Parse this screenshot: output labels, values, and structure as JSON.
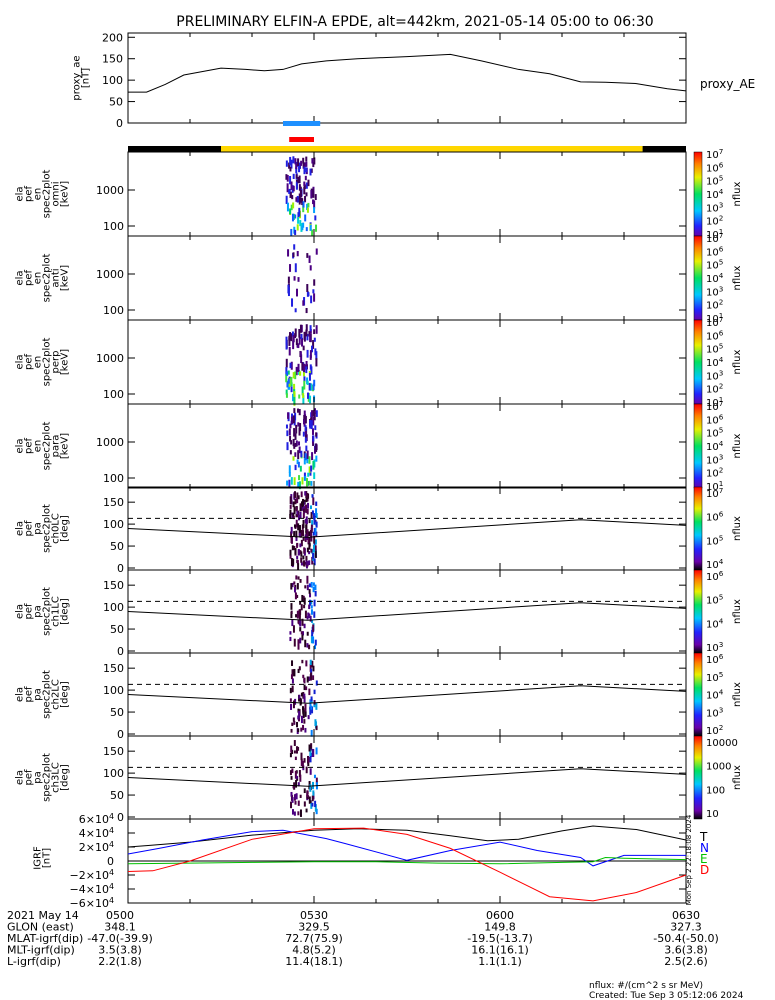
{
  "title": "PRELIMINARY ELFIN-A EPDE, alt=442km, 2021-05-14 05:00 to 06:30",
  "chart_data": [
    {
      "panel": "proxy_ae",
      "type": "line",
      "ylabel": [
        "proxy_ae",
        "[nT]"
      ],
      "yticks": [
        0,
        50,
        100,
        150,
        200
      ],
      "ylim": [
        0,
        210
      ],
      "legend": "proxy_AE",
      "series": [
        {
          "name": "proxy_AE",
          "x": [
            "05:00",
            "05:03",
            "05:06",
            "05:09",
            "05:15",
            "05:19",
            "05:22",
            "05:25",
            "05:28",
            "05:32",
            "05:37",
            "05:45",
            "05:52",
            "05:57",
            "06:03",
            "06:08",
            "06:13",
            "06:17",
            "06:22",
            "06:27",
            "06:30"
          ],
          "y": [
            72,
            72,
            90,
            112,
            128,
            125,
            122,
            125,
            138,
            145,
            150,
            155,
            160,
            145,
            125,
            115,
            96,
            95,
            92,
            80,
            75
          ]
        }
      ]
    },
    {
      "panel": "spectrogram-energy",
      "type": "heatmap",
      "panels": [
        {
          "ylabel": [
            "ela",
            "pef",
            "en",
            "spec2plot",
            "omni",
            "[keV]"
          ],
          "zticks": [
            "10",
            "10",
            "10",
            "10",
            "10",
            "10",
            "10"
          ],
          "zexp": [
            "1",
            "2",
            "3",
            "4",
            "5",
            "6",
            "7"
          ]
        },
        {
          "ylabel": [
            "ela",
            "pef",
            "en",
            "spec2plot",
            "anti",
            "[keV]"
          ],
          "zticks": [
            "10",
            "10",
            "10",
            "10",
            "10",
            "10",
            "10"
          ],
          "zexp": [
            "1",
            "2",
            "3",
            "4",
            "5",
            "6",
            "7"
          ]
        },
        {
          "ylabel": [
            "ela",
            "pef",
            "en",
            "spec2plot",
            "perp",
            "[keV]"
          ],
          "zticks": [
            "10",
            "10",
            "10",
            "10",
            "10",
            "10",
            "10"
          ],
          "zexp": [
            "1",
            "2",
            "3",
            "4",
            "5",
            "6",
            "7"
          ]
        },
        {
          "ylabel": [
            "ela",
            "pef",
            "en",
            "spec2plot",
            "para",
            "[keV]"
          ],
          "zticks": [
            "10",
            "10",
            "10",
            "10",
            "10",
            "10",
            "10"
          ],
          "zexp": [
            "1",
            "2",
            "3",
            "4",
            "5",
            "6",
            "7"
          ]
        }
      ],
      "yticks": [
        "100",
        "1000"
      ],
      "zlabel": "nflux",
      "activity_window": [
        "05:25",
        "05:30"
      ]
    },
    {
      "panel": "spectrogram-pitch-angle",
      "type": "heatmap",
      "panels": [
        {
          "ylabel": [
            "ela",
            "pef",
            "pa",
            "spec2plot",
            "ch0LC",
            "[deg]"
          ],
          "zticks": [
            "10",
            "10",
            "10",
            "10"
          ],
          "zexp": [
            "4",
            "5",
            "6",
            "7"
          ]
        },
        {
          "ylabel": [
            "ela",
            "pef",
            "pa",
            "spec2plot",
            "ch1LC",
            "[deg]"
          ],
          "zticks": [
            "10",
            "10",
            "10",
            "10"
          ],
          "zexp": [
            "3",
            "4",
            "5",
            "6"
          ]
        },
        {
          "ylabel": [
            "ela",
            "pef",
            "pa",
            "spec2plot",
            "ch2LC",
            "[deg]"
          ],
          "zticks": [
            "10",
            "10",
            "10",
            "10",
            "10"
          ],
          "zexp": [
            "2",
            "3",
            "4",
            "5",
            "6"
          ]
        },
        {
          "ylabel": [
            "ela",
            "pef",
            "pa",
            "spec2plot",
            "ch3LC",
            "[deg]"
          ],
          "zticks": [
            "10",
            "100",
            "1000",
            "10000"
          ],
          "zexp": [
            "",
            "",
            "",
            ""
          ]
        }
      ],
      "yticks": [
        0,
        50,
        100,
        150
      ],
      "zlabel": "nflux",
      "loss_cone": {
        "x": [
          "05:00",
          "05:29",
          "06:13",
          "06:30"
        ],
        "solid": [
          90,
          70,
          110,
          97
        ],
        "dashed": [
          113,
          113,
          113,
          113
        ]
      }
    },
    {
      "panel": "igrf",
      "type": "line",
      "ylabel": [
        "IGRF",
        "[nT]"
      ],
      "yticks": [
        "6×10",
        "4×10",
        "2×10",
        "0",
        "−2×10",
        "−4×10",
        "−6×10"
      ],
      "ytick_exp": "4",
      "side_text": "Mon Sep  2 22:18:08 2024",
      "legend": [
        "T",
        "N",
        "E",
        "D"
      ],
      "series": [
        {
          "name": "T",
          "color": "#000000",
          "x": [
            "05:00",
            "05:03",
            "05:10",
            "05:20",
            "05:30",
            "05:37",
            "05:45",
            "05:52",
            "05:58",
            "06:03",
            "06:10",
            "06:15",
            "06:22",
            "06:30"
          ],
          "y": [
            20000,
            22000,
            27000,
            37000,
            44000,
            46000,
            44000,
            36000,
            29000,
            31000,
            43000,
            50000,
            45000,
            30000
          ]
        },
        {
          "name": "N",
          "color": "#0000ff",
          "x": [
            "05:00",
            "05:05",
            "05:12",
            "05:20",
            "05:25",
            "05:32",
            "05:35",
            "05:45",
            "05:52",
            "06:00",
            "06:06",
            "06:13",
            "06:15",
            "06:20",
            "06:30"
          ],
          "y": [
            10000,
            18000,
            30000,
            42000,
            44000,
            32000,
            25000,
            1000,
            15000,
            27000,
            15000,
            5000,
            -7000,
            8000,
            8000
          ]
        },
        {
          "name": "E",
          "color": "#00c000",
          "x": [
            "05:00",
            "05:10",
            "05:20",
            "05:30",
            "05:40",
            "05:50",
            "06:00",
            "06:10",
            "06:15",
            "06:17",
            "06:20",
            "06:30"
          ],
          "y": [
            -4000,
            -3000,
            -2000,
            -1000,
            -1000,
            -3000,
            -4000,
            -2000,
            -1000,
            5000,
            4000,
            2000
          ]
        },
        {
          "name": "D",
          "color": "#ff0000",
          "x": [
            "05:00",
            "05:04",
            "05:10",
            "05:20",
            "05:30",
            "05:38",
            "05:45",
            "05:52",
            "06:00",
            "06:08",
            "06:15",
            "06:22",
            "06:30"
          ],
          "y": [
            -15000,
            -14000,
            0,
            31000,
            46000,
            47000,
            38000,
            18000,
            -16000,
            -51000,
            -57000,
            -45000,
            -20000
          ]
        }
      ]
    }
  ],
  "xticks": [
    "0500",
    "0530",
    "0600",
    "0630"
  ],
  "orbit_table": {
    "rows": [
      {
        "label": "2021 May 14",
        "values": [
          "0500",
          "0530",
          "0600",
          "0630"
        ]
      },
      {
        "label": "GLON (east)",
        "values": [
          "348.1",
          "329.5",
          "149.8",
          "327.3"
        ]
      },
      {
        "label": "MLAT-igrf(dip)",
        "values": [
          "-47.0(-39.9)",
          "72.7(75.9)",
          "-19.5(-13.7)",
          "-50.4(-50.0)"
        ]
      },
      {
        "label": "MLT-igrf(dip)",
        "values": [
          "3.5(3.8)",
          "4.8(5.2)",
          "16.1(16.1)",
          "3.6(3.8)"
        ]
      },
      {
        "label": "L-igrf(dip)",
        "values": [
          "2.2(1.8)",
          "11.4(18.1)",
          "1.1(1.1)",
          "2.5(2.6)"
        ]
      }
    ]
  },
  "footer": {
    "units": "nflux: #/(cm^2 s sr MeV)",
    "created": "Created: Tue Sep  3 05:12:06 2024"
  },
  "colors": {
    "sci_zone_blue": "#1e90ff",
    "sci_zone_red": "#ff0000",
    "status_bar_yellow": "#ffd700",
    "status_bar_black": "#000000"
  }
}
